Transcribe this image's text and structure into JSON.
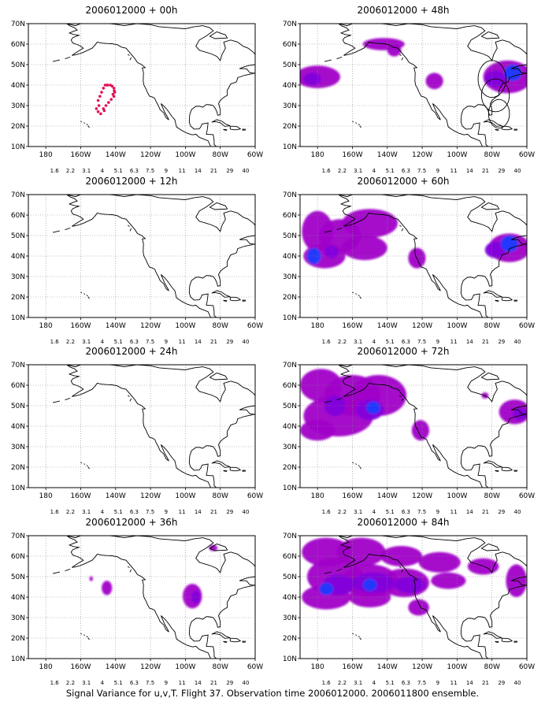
{
  "panels": [
    {
      "title": "2006012000 + 00h",
      "overlay": "points"
    },
    {
      "title": "2006012000 + 48h",
      "overlay": "h48"
    },
    {
      "title": "2006012000 + 12h",
      "overlay": "none"
    },
    {
      "title": "2006012000 + 60h",
      "overlay": "h60"
    },
    {
      "title": "2006012000 + 24h",
      "overlay": "none"
    },
    {
      "title": "2006012000 + 72h",
      "overlay": "h72"
    },
    {
      "title": "2006012000 + 36h",
      "overlay": "h36"
    },
    {
      "title": "2006012000 + 84h",
      "overlay": "h84"
    }
  ],
  "lat_labels": [
    "10N",
    "20N",
    "30N",
    "40N",
    "50N",
    "60N",
    "70N"
  ],
  "lon_labels": [
    "180",
    "160W",
    "140W",
    "120W",
    "100W",
    "80W",
    "60W"
  ],
  "colorbar": {
    "labels": [
      "1.6",
      "2.2",
      "3.1",
      "4",
      "5.1",
      "6.3",
      "7.5",
      "9",
      "11",
      "14",
      "21",
      "29",
      "40"
    ],
    "colors": [
      "#a000c8",
      "#8200dc",
      "#1e3cff",
      "#00a0ff",
      "#00c8c8",
      "#00d28c",
      "#00dc00",
      "#a0e632",
      "#e6dc32",
      "#e6af2d",
      "#f08228",
      "#fa3c3c",
      "#f00082"
    ]
  },
  "caption": "Signal Variance for u,v,T. Flight 37. Observation time 2006012000. 2006011800 ensemble."
}
